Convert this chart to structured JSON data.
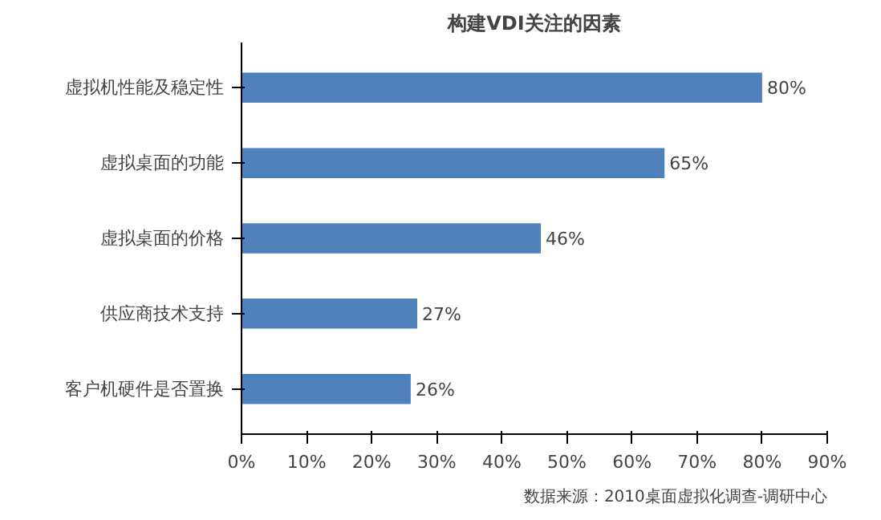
{
  "chart_data": {
    "type": "bar",
    "orientation": "horizontal",
    "title": "构建VDI关注的因素",
    "categories": [
      "虚拟机性能及稳定性",
      "虚拟桌面的功能",
      "虚拟桌面的价格",
      "供应商技术支持",
      "客户机硬件是否置换"
    ],
    "values": [
      80,
      65,
      46,
      27,
      26
    ],
    "value_labels": [
      "80%",
      "65%",
      "46%",
      "27%",
      "26%"
    ],
    "color": "#4f81bd",
    "xlim": [
      0,
      90
    ],
    "xticks": [
      {
        "value": 0,
        "label": "0%"
      },
      {
        "value": 10,
        "label": "10%"
      },
      {
        "value": 20,
        "label": "20%"
      },
      {
        "value": 30,
        "label": "30%"
      },
      {
        "value": 40,
        "label": "40%"
      },
      {
        "value": 50,
        "label": "50%"
      },
      {
        "value": 60,
        "label": "60%"
      },
      {
        "value": 70,
        "label": "70%"
      },
      {
        "value": 80,
        "label": "80%"
      },
      {
        "value": 90,
        "label": "90%"
      }
    ],
    "grid": false,
    "annotations": [
      "数据来源：2010桌面虚拟化调查-调研中心"
    ]
  }
}
